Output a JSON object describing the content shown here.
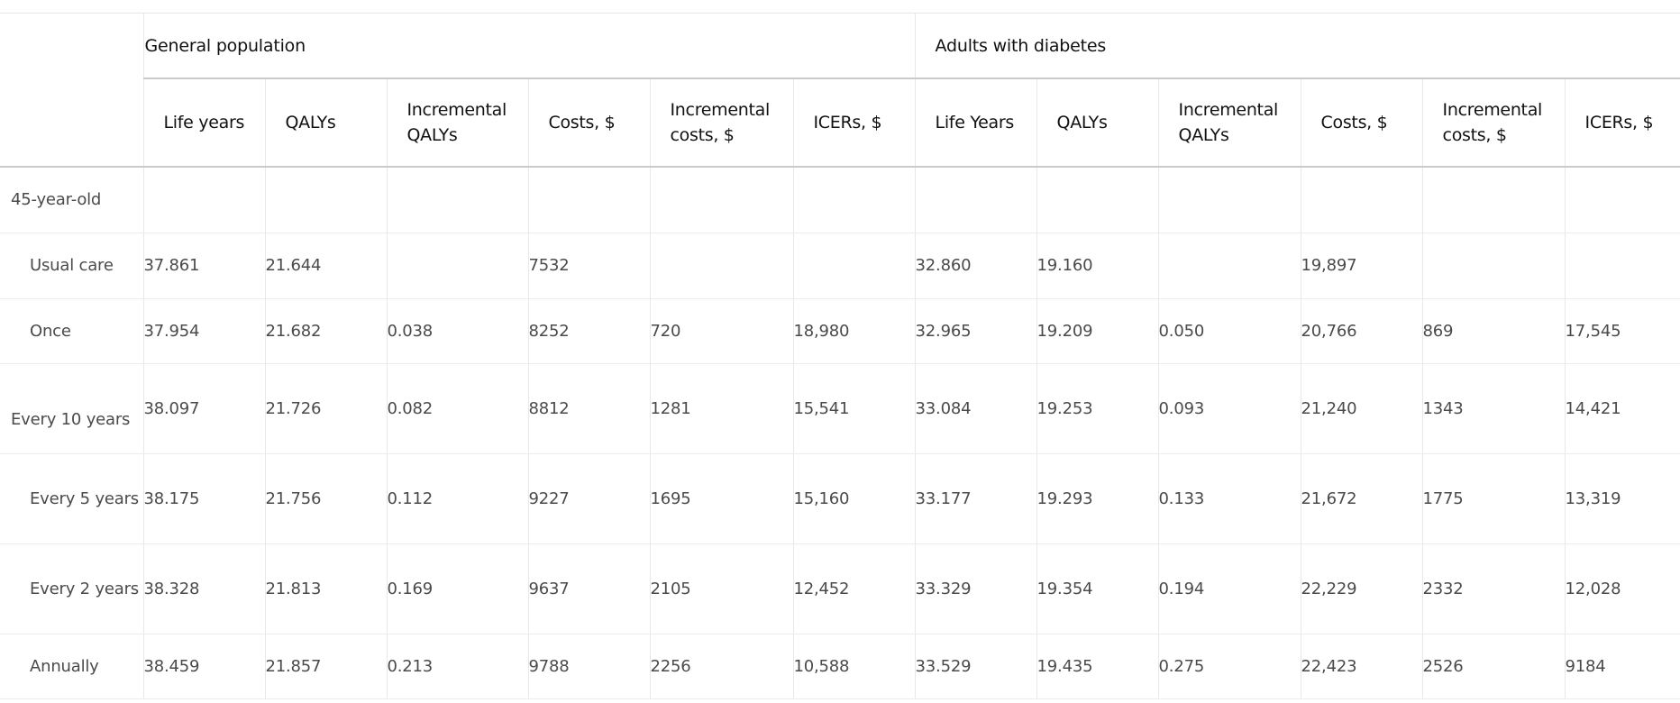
{
  "table": {
    "groups": [
      "General population",
      "Adults with diabetes"
    ],
    "columns": [
      "Life years",
      "QALYs",
      "Incremental QALYs",
      "Costs, $",
      "Incremental costs, $",
      "ICERs, $",
      "Life Years",
      "QALYs",
      "Incremental QALYs",
      "Costs, $",
      "Incremental costs, $",
      "ICERs, $"
    ],
    "rows": [
      {
        "label": "45-year-old",
        "values": [
          "",
          "",
          "",
          "",
          "",
          "",
          "",
          "",
          "",
          "",
          "",
          ""
        ]
      },
      {
        "label": "Usual care",
        "values": [
          "37.861",
          "21.644",
          "",
          "7532",
          "",
          "",
          "32.860",
          "19.160",
          "",
          "19,897",
          "",
          ""
        ]
      },
      {
        "label": "Once",
        "values": [
          "37.954",
          "21.682",
          "0.038",
          "8252",
          "720",
          "18,980",
          "32.965",
          "19.209",
          "0.050",
          "20,766",
          "869",
          "17,545"
        ]
      },
      {
        "label": "Every 10 years",
        "values": [
          "38.097",
          "21.726",
          "0.082",
          "8812",
          "1281",
          "15,541",
          "33.084",
          "19.253",
          "0.093",
          "21,240",
          "1343",
          "14,421"
        ]
      },
      {
        "label": "Every 5 years",
        "values": [
          "38.175",
          "21.756",
          "0.112",
          "9227",
          "1695",
          "15,160",
          "33.177",
          "19.293",
          "0.133",
          "21,672",
          "1775",
          "13,319"
        ]
      },
      {
        "label": "Every 2 years",
        "values": [
          "38.328",
          "21.813",
          "0.169",
          "9637",
          "2105",
          "12,452",
          "33.329",
          "19.354",
          "0.194",
          "22,229",
          "2332",
          "12,028"
        ]
      },
      {
        "label": "Annually",
        "values": [
          "38.459",
          "21.857",
          "0.213",
          "9788",
          "2256",
          "10,588",
          "33.529",
          "19.435",
          "0.275",
          "22,423",
          "2526",
          "9184"
        ]
      }
    ]
  }
}
